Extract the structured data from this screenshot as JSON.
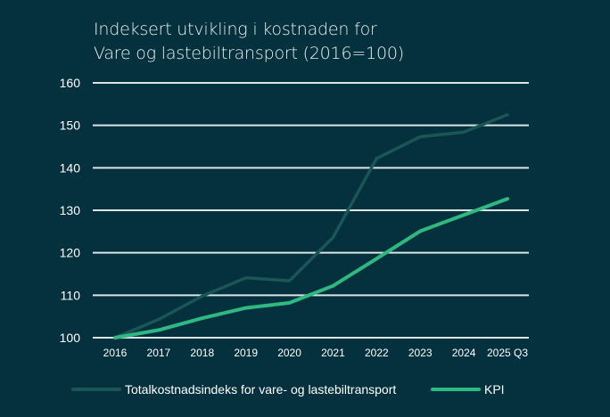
{
  "title_line1": "Indeksert utvikling i kostnaden for",
  "title_line2": "Vare og lastebiltransport (2016=100)",
  "colors": {
    "background": "#04313d",
    "grid": "#d9e5e6",
    "total": "#1b5656",
    "kpi": "#2db981"
  },
  "chart_data": {
    "type": "line",
    "title": "Indeksert utvikling i kostnaden for Vare og lastebiltransport (2016=100)",
    "xlabel": "",
    "ylabel": "",
    "categories": [
      "2016",
      "2017",
      "2018",
      "2019",
      "2020",
      "2021",
      "2022",
      "2023",
      "2024",
      "2025 Q3"
    ],
    "ylim": [
      100,
      160
    ],
    "yticks": [
      100,
      110,
      120,
      130,
      140,
      150,
      160
    ],
    "grid": true,
    "legend_position": "bottom",
    "series": [
      {
        "name": "Totalkostnadsindeks for vare- og lastebiltransport",
        "color": "#1b5656",
        "values": [
          100,
          104.3,
          109.8,
          114.1,
          113.4,
          123.6,
          142.2,
          147.3,
          148.4,
          152.5
        ]
      },
      {
        "name": "KPI",
        "color": "#2db981",
        "values": [
          100,
          101.8,
          104.6,
          107.0,
          108.2,
          112.2,
          118.6,
          125.1,
          128.9,
          132.7
        ]
      }
    ]
  }
}
